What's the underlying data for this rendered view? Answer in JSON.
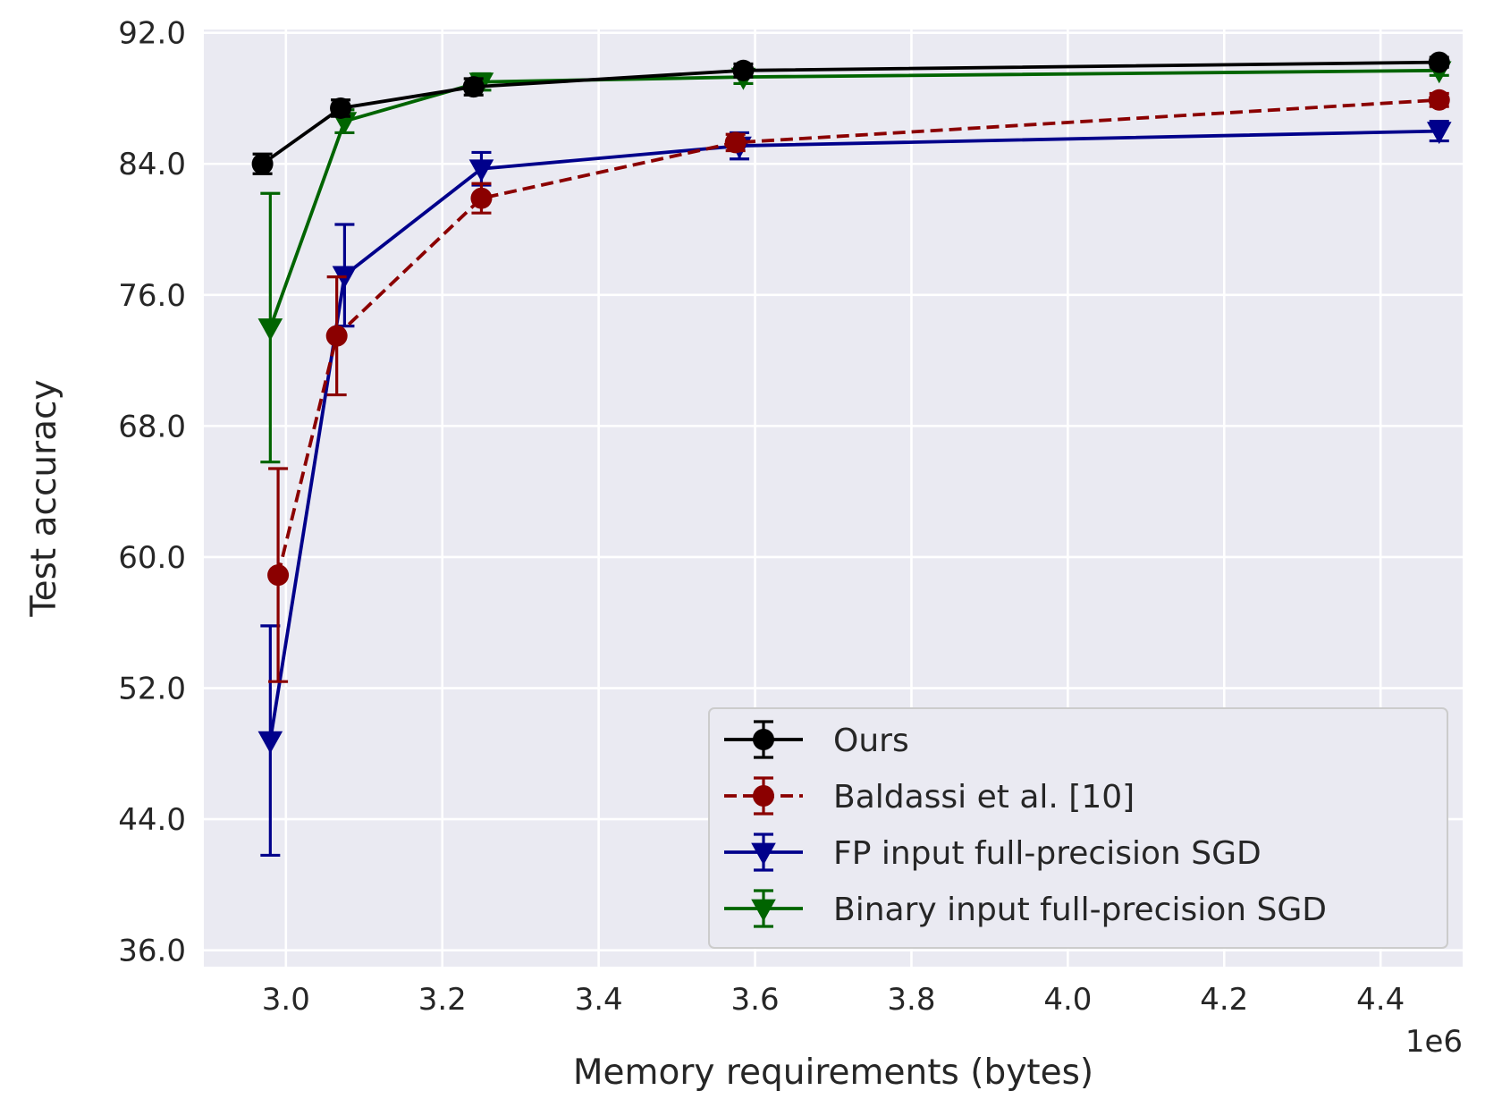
{
  "chart_data": {
    "type": "line",
    "title": "",
    "xlabel": "Memory requirements (bytes)",
    "ylabel": "Test accuracy",
    "x_offset_label": "1e6",
    "xlim": [
      2.895,
      4.505
    ],
    "ylim": [
      35.0,
      92.2
    ],
    "xticks": [
      3.0,
      3.2,
      3.4,
      3.6,
      3.8,
      4.0,
      4.2,
      4.4
    ],
    "xtick_labels": [
      "3.0",
      "3.2",
      "3.4",
      "3.6",
      "3.8",
      "4.0",
      "4.2",
      "4.4"
    ],
    "yticks": [
      36,
      44,
      52,
      60,
      68,
      76,
      84,
      92
    ],
    "ytick_labels": [
      "36.0",
      "44.0",
      "52.0",
      "60.0",
      "68.0",
      "76.0",
      "84.0",
      "92.0"
    ],
    "grid": true,
    "legend_position": "lower-right",
    "background": "#eaeaf2",
    "series": [
      {
        "name": "Ours",
        "color": "#000000",
        "marker": "circle",
        "linestyle": "solid",
        "x": [
          2.97,
          3.07,
          3.24,
          3.585,
          4.475
        ],
        "y": [
          84.0,
          87.4,
          88.7,
          89.7,
          90.2
        ],
        "yerr": [
          0.6,
          0.5,
          0.5,
          0.4,
          0.3
        ]
      },
      {
        "name": "Baldassi et al. [10]",
        "color": "#8b0000",
        "marker": "circle",
        "linestyle": "dashed",
        "x": [
          2.99,
          3.065,
          3.25,
          3.575,
          4.475
        ],
        "y": [
          58.9,
          73.5,
          81.9,
          85.3,
          87.9
        ],
        "yerr": [
          6.5,
          3.6,
          0.9,
          0.5,
          0.4
        ]
      },
      {
        "name": "FP input full-precision SGD",
        "color": "#00008b",
        "marker": "triangle-down",
        "linestyle": "solid",
        "x": [
          2.98,
          3.075,
          3.25,
          3.58,
          4.475
        ],
        "y": [
          48.8,
          77.2,
          83.7,
          85.1,
          86.0
        ],
        "yerr": [
          7.0,
          3.1,
          1.0,
          0.8,
          0.6
        ]
      },
      {
        "name": "Binary input full-precision SGD",
        "color": "#006400",
        "marker": "triangle-down",
        "linestyle": "solid",
        "x": [
          2.98,
          3.075,
          3.25,
          3.585,
          4.475
        ],
        "y": [
          74.0,
          86.6,
          89.0,
          89.3,
          89.7
        ],
        "yerr": [
          8.2,
          0.7,
          0.5,
          0.4,
          0.3
        ]
      }
    ]
  }
}
